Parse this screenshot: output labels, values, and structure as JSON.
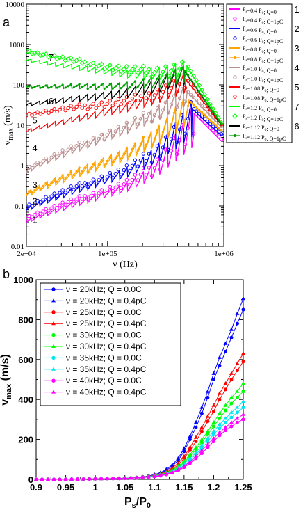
{
  "colors": {
    "magenta": "#ff00ff",
    "blue": "#0000ff",
    "orange": "#ffa500",
    "rosybrown": "#bc8f8f",
    "red": "#ff0000",
    "green": "#00ff00",
    "black": "#000000",
    "darkgreen": "#00a000",
    "aqua": "#00e5ee"
  },
  "panel_labels": [
    "a",
    "b"
  ],
  "chart_data": [
    {
      "type": "line",
      "panel": "a",
      "xlabel": "ν (Hz)",
      "ylabel": "v_max (m/s)",
      "ylabel_main": "v",
      "ylabel_sub": "max",
      "ylabel_unit": " (m/s)",
      "xscale": "log",
      "yscale": "log",
      "xlim": [
        20000,
        1000000
      ],
      "ylim": [
        0.01,
        10000
      ],
      "x_ticks": [
        {
          "v": 20000,
          "label": "2e+04"
        },
        {
          "v": 100000,
          "label": "1e+05"
        },
        {
          "v": 1000000,
          "label": "1e+06"
        }
      ],
      "y_ticks": [
        {
          "v": 0.01,
          "label": "0.01"
        },
        {
          "v": 0.1,
          "label": "0.1"
        },
        {
          "v": 1,
          "label": "1"
        },
        {
          "v": 10,
          "label": "10"
        },
        {
          "v": 100,
          "label": "100"
        },
        {
          "v": 1000,
          "label": "1000"
        },
        {
          "v": 10000,
          "label": "10000"
        }
      ],
      "legend": [
        {
          "text": "P_s=0.4 P_0; Q=0",
          "color": "magenta",
          "marker": "line",
          "num": "1"
        },
        {
          "text": "P_s=0.4 P_0; Q=1pC",
          "color": "magenta",
          "marker": "circle",
          "num": ""
        },
        {
          "text": "P_s=0.6 P_0; Q=0",
          "color": "blue",
          "marker": "line",
          "num": "2"
        },
        {
          "text": "P_s=0.6 P_0; Q=1pC",
          "color": "blue",
          "marker": "circle",
          "num": ""
        },
        {
          "text": "P_s=0.8 P_0; Q=0",
          "color": "orange",
          "marker": "line",
          "num": "3"
        },
        {
          "text": "P_s=0.8 P_0; Q=1pC",
          "color": "orange",
          "marker": "line-dot",
          "num": ""
        },
        {
          "text": "P_s=1.0 P_0; Q=0",
          "color": "rosybrown",
          "marker": "line",
          "num": "4"
        },
        {
          "text": "P_s=1.0 P_0; Q=1pC",
          "color": "rosybrown",
          "marker": "circle",
          "num": ""
        },
        {
          "text": "P_s=1.08 P_0; Q=0",
          "color": "red",
          "marker": "line",
          "num": "5"
        },
        {
          "text": "P_s=1.08 P_0; Q=1pC",
          "color": "red",
          "marker": "circle",
          "num": ""
        },
        {
          "text": "P_s=1.2 P_0; Q=0",
          "color": "green",
          "marker": "line",
          "num": "7"
        },
        {
          "text": "P_s=1.2 P_0; Q=1pC",
          "color": "green",
          "marker": "diamond",
          "num": ""
        },
        {
          "text": "P_s=1.12 P_0; Q=0",
          "color": "black",
          "marker": "line",
          "num": "6"
        },
        {
          "text": "P_s=1.12 P_0; Q=1pC",
          "color": "darkgreen",
          "marker": "line-dot",
          "num": ""
        }
      ],
      "curve_labels": [
        {
          "text": "1",
          "x": 22500,
          "y": 0.038
        },
        {
          "text": "2",
          "x": 22500,
          "y": 0.11
        },
        {
          "text": "3",
          "x": 22500,
          "y": 0.28
        },
        {
          "text": "4",
          "x": 22500,
          "y": 2.3
        },
        {
          "text": "5",
          "x": 22500,
          "y": 11
        },
        {
          "text": "6",
          "x": 31000,
          "y": 33
        },
        {
          "text": "7",
          "x": 31000,
          "y": 400
        }
      ],
      "series": [
        {
          "name": "P_s=0.4 P_0; Q=0",
          "color": "magenta",
          "style": "line",
          "y0": 0.04,
          "y1": 0.9,
          "x_peak": 550000,
          "y_peak": 20,
          "osc": 0.25,
          "y_end": 4
        },
        {
          "name": "P_s=0.4 P_0; Q=1pC",
          "color": "magenta",
          "style": "circle",
          "y0": 0.05,
          "y1": 1.1,
          "x_peak": 550000,
          "y_peak": 22,
          "osc": 0.25,
          "y_end": 4.5
        },
        {
          "name": "P_s=0.6 P_0; Q=0",
          "color": "blue",
          "style": "line",
          "y0": 0.08,
          "y1": 2.2,
          "x_peak": 530000,
          "y_peak": 26,
          "osc": 0.28,
          "y_end": 5.5
        },
        {
          "name": "P_s=0.6 P_0; Q=1pC",
          "color": "blue",
          "style": "circle",
          "y0": 0.095,
          "y1": 2.6,
          "x_peak": 530000,
          "y_peak": 28,
          "osc": 0.28,
          "y_end": 6
        },
        {
          "name": "P_s=0.8 P_0; Q=0",
          "color": "orange",
          "style": "line",
          "y0": 0.18,
          "y1": 6,
          "x_peak": 500000,
          "y_peak": 40,
          "osc": 0.3,
          "y_end": 7
        },
        {
          "name": "P_s=0.8 P_0; Q=1pC",
          "color": "orange",
          "style": "line-dot",
          "y0": 0.2,
          "y1": 7,
          "x_peak": 500000,
          "y_peak": 42,
          "osc": 0.3,
          "y_end": 7.5
        },
        {
          "name": "P_s=1.0 P_0; Q=0",
          "color": "rosybrown",
          "style": "line",
          "y0": 0.7,
          "y1": 30,
          "x_peak": 480000,
          "y_peak": 70,
          "osc": 0.3,
          "y_end": 9
        },
        {
          "name": "P_s=1.0 P_0; Q=1pC",
          "color": "rosybrown",
          "style": "circle",
          "y0": 0.8,
          "y1": 32,
          "x_peak": 480000,
          "y_peak": 72,
          "osc": 0.3,
          "y_end": 9.5
        },
        {
          "name": "P_s=1.08 P_0; Q=0",
          "color": "red",
          "style": "line",
          "y0": 7,
          "y1": 55,
          "x_peak": 470000,
          "y_peak": 140,
          "osc": 0.25,
          "y_end": 10
        },
        {
          "name": "P_s=1.08 P_0; Q=1pC",
          "color": "red",
          "style": "circle",
          "y0": 18,
          "y1": 60,
          "x_peak": 470000,
          "y_peak": 150,
          "osc": 0.25,
          "y_end": 10.5
        },
        {
          "name": "P_s=1.2 P_0; Q=0",
          "color": "green",
          "style": "line",
          "y0": 420,
          "y1": 120,
          "x_peak": 480000,
          "y_peak": 300,
          "osc": 0.22,
          "y_end": 11
        },
        {
          "name": "P_s=1.2 P_0; Q=1pC",
          "color": "green",
          "style": "diamond",
          "y0": 700,
          "y1": 130,
          "x_peak": 480000,
          "y_peak": 320,
          "osc": 0.22,
          "y_end": 11.5
        },
        {
          "name": "P_s=1.12 P_0; Q=0",
          "color": "black",
          "style": "line",
          "y0": 32,
          "y1": 85,
          "x_peak": 460000,
          "y_peak": 220,
          "osc": 0.25,
          "y_end": 10
        },
        {
          "name": "P_s=1.12 P_0; Q=1pC",
          "color": "darkgreen",
          "style": "line-dot",
          "y0": 90,
          "y1": 95,
          "x_peak": 460000,
          "y_peak": 230,
          "osc": 0.2,
          "y_end": 10.5
        }
      ]
    },
    {
      "type": "line",
      "panel": "b",
      "xlabel_main": "P",
      "xlabel_sub1": "s",
      "xlabel_mid": "/P",
      "xlabel_sub2": "0",
      "ylabel_main": "v",
      "ylabel_sub": "max",
      "ylabel_unit": "  (m/s)",
      "xlim": [
        0.9,
        1.25
      ],
      "ylim": [
        0,
        1000
      ],
      "x_ticks": [
        {
          "v": 0.9,
          "label": "0.9"
        },
        {
          "v": 0.95,
          "label": "0.95"
        },
        {
          "v": 1.0,
          "label": "1"
        },
        {
          "v": 1.05,
          "label": "1.05"
        },
        {
          "v": 1.1,
          "label": "1.1"
        },
        {
          "v": 1.15,
          "label": "1.15"
        },
        {
          "v": 1.2,
          "label": "1.2"
        },
        {
          "v": 1.25,
          "label": "1.25"
        }
      ],
      "y_ticks": [
        {
          "v": 0,
          "label": "0"
        },
        {
          "v": 200,
          "label": "200"
        },
        {
          "v": 400,
          "label": "400"
        },
        {
          "v": 600,
          "label": "600"
        },
        {
          "v": 800,
          "label": "800"
        },
        {
          "v": 1000,
          "label": "1000"
        }
      ],
      "x": [
        0.9,
        0.91,
        0.92,
        0.93,
        0.94,
        0.95,
        0.96,
        0.97,
        0.98,
        0.99,
        1.0,
        1.01,
        1.02,
        1.03,
        1.04,
        1.05,
        1.06,
        1.07,
        1.08,
        1.09,
        1.1,
        1.11,
        1.12,
        1.13,
        1.14,
        1.15,
        1.16,
        1.17,
        1.18,
        1.19,
        1.2,
        1.21,
        1.22,
        1.23,
        1.24,
        1.25
      ],
      "series": [
        {
          "name": "ν = 20kHz;  Q = 0.0C",
          "color": "blue",
          "marker": "circle",
          "values": [
            0,
            0,
            0,
            0,
            0,
            0.5,
            1,
            1,
            1.5,
            2,
            2.5,
            3,
            3.5,
            4,
            5,
            6,
            7,
            9,
            12,
            16,
            22,
            30,
            45,
            65,
            95,
            140,
            200,
            260,
            330,
            410,
            500,
            570,
            640,
            710,
            780,
            850
          ]
        },
        {
          "name": "ν = 20kHz;  Q = 0.4pC",
          "color": "blue",
          "marker": "triangle",
          "values": [
            0,
            0,
            0,
            0,
            0,
            0.5,
            1,
            1,
            1.5,
            2,
            2.5,
            3,
            3.5,
            4,
            5,
            6,
            7,
            9,
            12,
            17,
            24,
            33,
            50,
            72,
            105,
            155,
            215,
            285,
            360,
            440,
            530,
            610,
            680,
            750,
            830,
            905
          ]
        },
        {
          "name": "ν = 25kHz;  Q = 0.0C",
          "color": "red",
          "marker": "circle",
          "values": [
            0,
            0,
            0,
            0,
            0,
            0.5,
            1,
            1,
            1.5,
            2,
            2.5,
            3,
            3.5,
            4,
            5,
            6,
            7,
            8,
            11,
            14,
            19,
            25,
            35,
            50,
            72,
            105,
            145,
            190,
            240,
            290,
            340,
            400,
            450,
            500,
            545,
            590
          ]
        },
        {
          "name": "ν = 25kHz;  Q = 0.4pC",
          "color": "red",
          "marker": "triangle",
          "values": [
            0,
            0,
            0,
            0,
            0,
            0.5,
            1,
            1,
            1.5,
            2,
            2.5,
            3,
            3.5,
            4,
            5,
            6,
            7,
            9,
            12,
            15,
            21,
            28,
            40,
            57,
            80,
            115,
            160,
            210,
            260,
            315,
            370,
            430,
            480,
            530,
            580,
            630
          ]
        },
        {
          "name": "ν = 30kHz;  Q = 0.0C",
          "color": "green",
          "marker": "circle",
          "values": [
            0,
            0,
            0,
            0,
            0,
            0.5,
            1,
            1,
            1.5,
            2,
            2.5,
            3,
            3.5,
            4,
            5,
            5.5,
            6.5,
            8,
            10,
            13,
            17,
            22,
            30,
            42,
            60,
            85,
            115,
            150,
            185,
            225,
            265,
            305,
            345,
            380,
            410,
            440
          ]
        },
        {
          "name": "ν = 30kHz;  Q = 0.4pC",
          "color": "green",
          "marker": "triangle",
          "values": [
            0,
            0,
            0,
            0,
            0,
            0.5,
            1,
            1,
            1.5,
            2,
            2.5,
            3,
            3.5,
            4,
            5,
            6,
            7,
            8.5,
            11,
            14,
            19,
            25,
            33,
            46,
            66,
            92,
            125,
            160,
            200,
            240,
            285,
            330,
            370,
            410,
            440,
            480
          ]
        },
        {
          "name": "ν = 35kHz;  Q = 0.0C",
          "color": "aqua",
          "marker": "circle",
          "values": [
            0,
            0,
            0,
            0,
            0,
            0.5,
            1,
            1,
            1.5,
            2,
            2.5,
            3,
            3.5,
            4,
            4.5,
            5,
            6,
            7.5,
            9.5,
            12,
            15,
            19,
            26,
            36,
            50,
            70,
            95,
            125,
            155,
            190,
            225,
            255,
            285,
            310,
            335,
            360
          ]
        },
        {
          "name": "ν = 35kHz;  Q = 0.4pC",
          "color": "aqua",
          "marker": "triangle",
          "values": [
            0,
            0,
            0,
            0,
            0,
            0.5,
            1,
            1,
            1.5,
            2,
            2.5,
            3,
            3.5,
            4,
            5,
            5.5,
            6.5,
            8,
            10,
            13,
            17,
            22,
            29,
            40,
            56,
            78,
            105,
            135,
            170,
            205,
            240,
            275,
            305,
            335,
            360,
            390
          ]
        },
        {
          "name": "ν = 40kHz;  Q = 0.0C",
          "color": "magenta",
          "marker": "circle",
          "values": [
            0,
            0,
            0,
            0,
            0,
            0.5,
            1,
            1,
            1.5,
            2,
            2.5,
            3,
            3.5,
            4,
            4.5,
            5,
            6,
            7,
            9,
            11,
            14,
            18,
            24,
            32,
            44,
            60,
            80,
            105,
            130,
            160,
            190,
            220,
            245,
            265,
            285,
            300
          ]
        },
        {
          "name": "ν = 40kHz;  Q = 0.4pC",
          "color": "magenta",
          "marker": "triangle",
          "values": [
            0,
            0,
            0,
            0,
            0,
            0.5,
            1,
            1,
            1.5,
            2,
            2.5,
            3,
            3.5,
            4,
            4.5,
            5,
            6,
            7.5,
            9.5,
            12,
            15,
            20,
            26,
            35,
            48,
            66,
            88,
            115,
            145,
            175,
            205,
            235,
            260,
            285,
            305,
            325
          ]
        }
      ]
    }
  ]
}
